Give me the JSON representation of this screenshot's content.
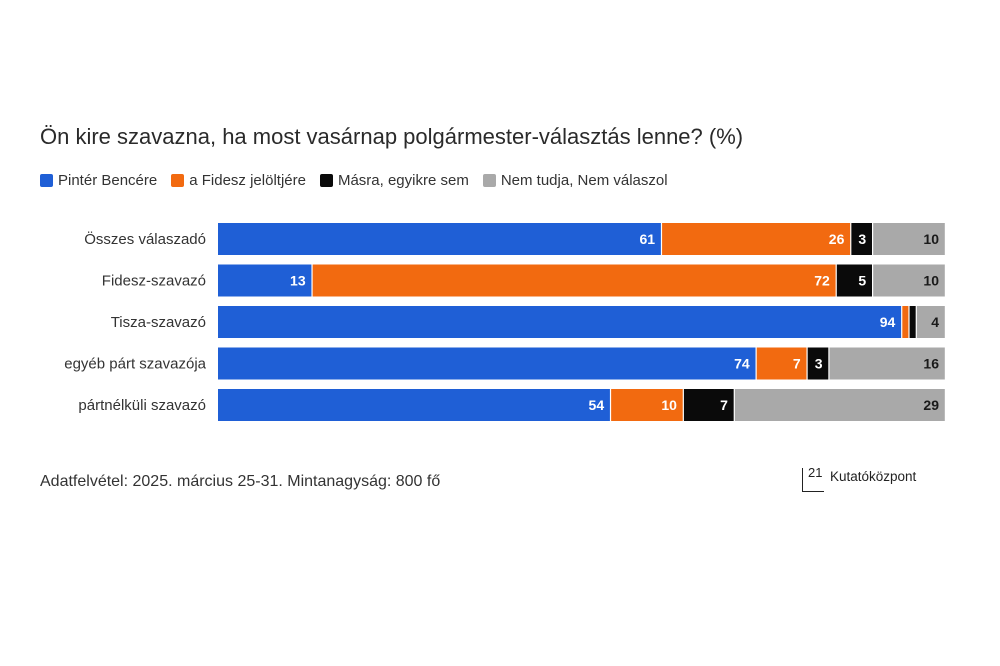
{
  "title": "Ön kire szavazna, ha most vasárnap polgármester-választás lenne? (%)",
  "legend": [
    {
      "label": "Pintér Bencére",
      "color": "#1f5fd6"
    },
    {
      "label": "a Fidesz jelöltjére",
      "color": "#f26a10"
    },
    {
      "label": "Másra, egyikre sem",
      "color": "#0a0a0a"
    },
    {
      "label": "Nem tudja, Nem válaszol",
      "color": "#a9a9a9"
    }
  ],
  "footer": "Adatfelvétel: 2025. március 25-31. Mintanagyság: 800 fő",
  "brand": {
    "number": "21",
    "name": "Kutatóközpont"
  },
  "chart_data": {
    "type": "bar",
    "orientation": "horizontal",
    "stacked": true,
    "categories": [
      "Összes válaszadó",
      "Fidesz-szavazó",
      "Tisza-szavazó",
      "egyéb párt szavazója",
      "pártnélküli szavazó"
    ],
    "series": [
      {
        "name": "Pintér Bencére",
        "color": "#1f5fd6",
        "values": [
          61,
          13,
          94,
          74,
          54
        ],
        "labels": [
          "61",
          "13",
          "94",
          "74",
          "54"
        ]
      },
      {
        "name": "a Fidesz jelöltjére",
        "color": "#f26a10",
        "values": [
          26,
          72,
          1,
          7,
          10
        ],
        "labels": [
          "26",
          "72",
          "",
          "7",
          "10"
        ]
      },
      {
        "name": "Másra, egyikre sem",
        "color": "#0a0a0a",
        "values": [
          3,
          5,
          1,
          3,
          7
        ],
        "labels": [
          "3",
          "5",
          "",
          "3",
          "7"
        ]
      },
      {
        "name": "Nem tudja, Nem válaszol",
        "color": "#a9a9a9",
        "values": [
          10,
          10,
          4,
          16,
          29
        ],
        "labels": [
          "10",
          "10",
          "4",
          "16",
          "29"
        ]
      }
    ],
    "xlim": [
      0,
      100
    ],
    "grid": false,
    "legend_position": "top-left"
  }
}
